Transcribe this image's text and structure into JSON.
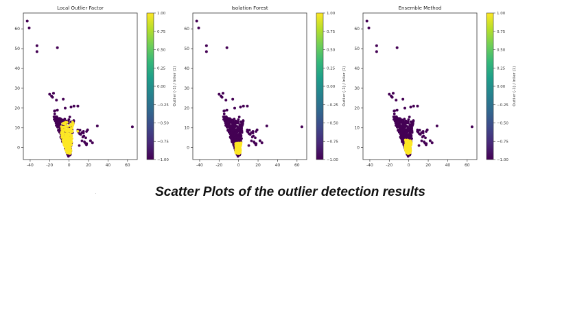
{
  "caption": "Scatter Plots of the outlier detection results",
  "colors": {
    "outlier": "#440154",
    "inlier": "#fde725",
    "axes": "#333333"
  },
  "colormap": {
    "name": "viridis",
    "stops": [
      "#440154",
      "#482878",
      "#3e4989",
      "#31688e",
      "#26828e",
      "#1f9e89",
      "#35b779",
      "#6ece58",
      "#b5de2b",
      "#fde725"
    ]
  },
  "chart_data": [
    {
      "type": "scatter",
      "title": "Local Outlier Factor",
      "xlim": [
        -47,
        70
      ],
      "ylim": [
        -6,
        68
      ],
      "xticks": [
        "-40",
        "-20",
        "0",
        "20",
        "40",
        "60"
      ],
      "xtick_values": [
        -40,
        -20,
        0,
        20,
        40,
        60
      ],
      "yticks": [
        "0",
        "10",
        "20",
        "30",
        "40",
        "50",
        "60"
      ],
      "ytick_values": [
        0,
        10,
        20,
        30,
        40,
        50,
        60
      ],
      "colorbar": {
        "label": "Outlier (-1) / Inlier (1)",
        "range": [
          -1,
          1
        ],
        "ticks": [
          "1.00",
          "0.75",
          "0.50",
          "0.25",
          "0.00",
          "−0.25",
          "−0.50",
          "−0.75",
          "−1.00"
        ],
        "tick_values": [
          1,
          0.75,
          0.5,
          0.25,
          0,
          -0.25,
          -0.5,
          -0.75,
          -1
        ]
      },
      "inlier_region": "spread",
      "seed": 11
    },
    {
      "type": "scatter",
      "title": "Isolation Forest",
      "xlim": [
        -47,
        70
      ],
      "ylim": [
        -6,
        68
      ],
      "xticks": [
        "-40",
        "-20",
        "0",
        "20",
        "40",
        "60"
      ],
      "xtick_values": [
        -40,
        -20,
        0,
        20,
        40,
        60
      ],
      "yticks": [
        "0",
        "10",
        "20",
        "30",
        "40",
        "50",
        "60"
      ],
      "ytick_values": [
        0,
        10,
        20,
        30,
        40,
        50,
        60
      ],
      "colorbar": {
        "label": "Outlier (-1) / Inlier (1)",
        "range": [
          -1,
          1
        ],
        "ticks": [
          "1.00",
          "0.75",
          "0.50",
          "0.25",
          "0.00",
          "−0.25",
          "−0.50",
          "−0.75",
          "−1.00"
        ],
        "tick_values": [
          1,
          0.75,
          0.5,
          0.25,
          0,
          -0.25,
          -0.5,
          -0.75,
          -1
        ]
      },
      "inlier_region": "core",
      "seed": 23
    },
    {
      "type": "scatter",
      "title": "Ensemble Method",
      "xlim": [
        -47,
        70
      ],
      "ylim": [
        -6,
        68
      ],
      "xticks": [
        "-40",
        "-20",
        "0",
        "20",
        "40",
        "60"
      ],
      "xtick_values": [
        -40,
        -20,
        0,
        20,
        40,
        60
      ],
      "yticks": [
        "0",
        "10",
        "20",
        "30",
        "40",
        "50",
        "60"
      ],
      "ytick_values": [
        0,
        10,
        20,
        30,
        40,
        50,
        60
      ],
      "colorbar": {
        "label": "Outlier (-1) / Inlier (1)",
        "range": [
          -1,
          1
        ],
        "ticks": [
          "1.00",
          "0.75",
          "0.50",
          "0.25",
          "0.00",
          "−0.25",
          "−0.50",
          "−0.75",
          "−1.00"
        ],
        "tick_values": [
          1,
          0.75,
          0.5,
          0.25,
          0,
          -0.25,
          -0.5,
          -0.75,
          -1
        ]
      },
      "inlier_region": "small",
      "seed": 37
    }
  ],
  "outlier_points": [
    [
      -43,
      64
    ],
    [
      -41,
      60.5
    ],
    [
      -33,
      51.5
    ],
    [
      -33,
      48.5
    ],
    [
      -12,
      50.5
    ],
    [
      -20,
      27
    ],
    [
      -18,
      26
    ],
    [
      -16,
      27.5
    ],
    [
      -17,
      25.5
    ],
    [
      -13,
      24
    ],
    [
      -6,
      24.5
    ],
    [
      -4,
      20
    ],
    [
      5,
      21
    ],
    [
      2,
      20.5
    ],
    [
      9,
      21
    ],
    [
      -12,
      19
    ],
    [
      -15,
      18.5
    ],
    [
      29,
      11
    ],
    [
      65,
      10.5
    ],
    [
      19,
      9
    ],
    [
      24,
      2.5
    ],
    [
      18,
      2
    ],
    [
      22,
      3.5
    ]
  ]
}
